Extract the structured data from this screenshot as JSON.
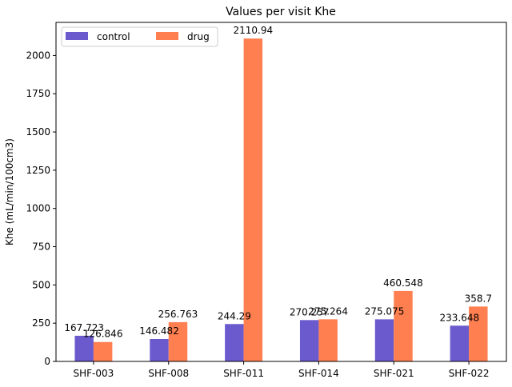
{
  "chart_data": {
    "type": "bar",
    "title": "Values per visit Khe",
    "xlabel": "",
    "ylabel": "Khe (mL/min/100cm3)",
    "categories": [
      "SHF-003",
      "SHF-008",
      "SHF-011",
      "SHF-014",
      "SHF-021",
      "SHF-022"
    ],
    "series": [
      {
        "name": "control",
        "color": "#6a5acd",
        "values": [
          167.723,
          146.482,
          244.29,
          270.257,
          275.075,
          233.648
        ],
        "labels": [
          "167.723",
          "146.482",
          "244.29",
          "270.257",
          "275.075",
          "233.648"
        ]
      },
      {
        "name": "drug",
        "color": "#ff7f50",
        "values": [
          126.846,
          256.763,
          2110.94,
          275.264,
          460.548,
          358.7
        ],
        "labels": [
          "126.846",
          "256.763",
          "2110.94",
          "275.264",
          "460.548",
          "358.7"
        ]
      }
    ],
    "ylim": [
      0,
      2216.5
    ],
    "yticks": [
      0,
      250,
      500,
      750,
      1000,
      1250,
      1500,
      1750,
      2000
    ],
    "grid": false,
    "legend": "top-left"
  }
}
